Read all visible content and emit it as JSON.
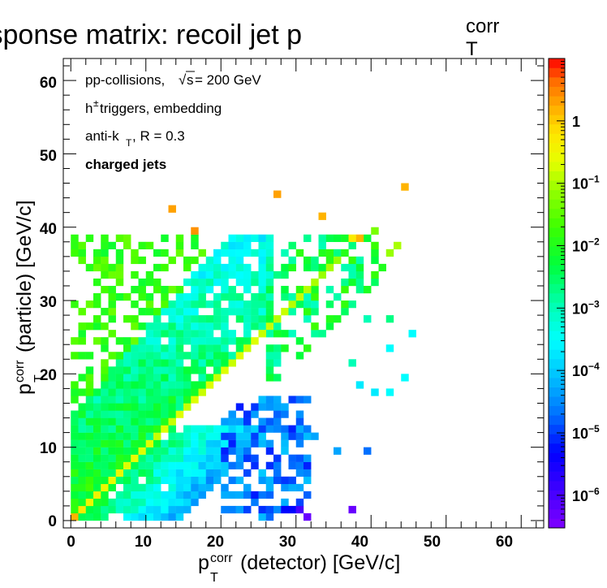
{
  "chart_data": {
    "type": "heatmap",
    "title": {
      "main": "Response matrix: recoil jet p",
      "sup": "corr",
      "sub": "T"
    },
    "xlabel": {
      "p": "p",
      "sup": "corr",
      "sub": "T",
      "rest": "(detector) [GeV/c]"
    },
    "ylabel": {
      "p": "p",
      "sup": "corr",
      "sub": "T",
      "rest": "(particle) [GeV/c]"
    },
    "xlim": [
      -1,
      63
    ],
    "ylim": [
      -1,
      63
    ],
    "x_ticks": [
      "0",
      "10",
      "20",
      "30",
      "40",
      "50",
      "60"
    ],
    "y_ticks": [
      "0",
      "10",
      "20",
      "30",
      "40",
      "50",
      "60"
    ],
    "z_scale": "log",
    "zlim": [
      3e-07,
      10
    ],
    "z_ticks": [
      {
        "base": "10",
        "exp": "−6",
        "value": 1e-06
      },
      {
        "base": "10",
        "exp": "−5",
        "value": 1e-05
      },
      {
        "base": "10",
        "exp": "−4",
        "value": 0.0001
      },
      {
        "base": "10",
        "exp": "−3",
        "value": 0.001
      },
      {
        "base": "10",
        "exp": "−2",
        "value": 0.01
      },
      {
        "base": "10",
        "exp": "−1",
        "value": 0.1
      },
      {
        "base": "1",
        "exp": "",
        "value": 1
      }
    ],
    "annotations": {
      "line1": {
        "pre": "pp-collisions, ",
        "sqrt": "√",
        "s": "s",
        "post": " = 200 GeV"
      },
      "line2": {
        "h": "h",
        "sup": "±",
        "post": " triggers, embedding"
      },
      "line3": {
        "pre": "anti-k",
        "sub": "T",
        "post": ", R = 0.3"
      },
      "line4": "charged jets"
    },
    "bin_width": 1,
    "features": {
      "diagonal_bins": [
        [
          0,
          0,
          1.5
        ],
        [
          1,
          1,
          0.5
        ],
        [
          2,
          2,
          0.3
        ],
        [
          3,
          3,
          0.35
        ],
        [
          4,
          4,
          0.3
        ],
        [
          5,
          5,
          0.25
        ],
        [
          6,
          6,
          0.3
        ],
        [
          7,
          7,
          0.2
        ],
        [
          8,
          8,
          0.25
        ],
        [
          9,
          9,
          0.2
        ],
        [
          10,
          10,
          0.2
        ],
        [
          11,
          11,
          0.15
        ],
        [
          12,
          12,
          0.2
        ],
        [
          13,
          13,
          0.15
        ],
        [
          14,
          14,
          0.2
        ],
        [
          15,
          15,
          0.15
        ],
        [
          16,
          16,
          0.2
        ],
        [
          17,
          17,
          0.15
        ],
        [
          18,
          18,
          0.2
        ],
        [
          19,
          19,
          0.15
        ],
        [
          20,
          20,
          0.2
        ],
        [
          21,
          21,
          0.15
        ],
        [
          22,
          22,
          0.2
        ],
        [
          23,
          23,
          0.15
        ],
        [
          24,
          24,
          0.2
        ],
        [
          25,
          25,
          0.15
        ],
        [
          26,
          26,
          0.15
        ],
        [
          27,
          27,
          0.12
        ],
        [
          28,
          28,
          0.15
        ],
        [
          29,
          29,
          0.12
        ],
        [
          30,
          30,
          0.15
        ],
        [
          31,
          31,
          0.12
        ],
        [
          32,
          32,
          0.1
        ],
        [
          33,
          33,
          0.08
        ],
        [
          34,
          34,
          0.1
        ],
        [
          35,
          35,
          0.08
        ]
      ],
      "isolated_bins": [
        [
          13,
          42,
          2
        ],
        [
          16,
          39,
          2.5
        ],
        [
          27,
          44,
          2
        ],
        [
          33,
          41,
          1.5
        ],
        [
          44,
          45,
          1.5
        ],
        [
          37,
          38,
          0.5
        ],
        [
          38,
          38,
          1.5
        ],
        [
          30,
          1,
          1e-06
        ],
        [
          31,
          0,
          5e-07
        ],
        [
          37,
          1,
          5e-07
        ],
        [
          28,
          1,
          5e-06
        ],
        [
          29,
          1,
          5e-06
        ],
        [
          39,
          9,
          2e-05
        ],
        [
          35,
          9,
          5e-05
        ],
        [
          32,
          11,
          5e-05
        ],
        [
          22,
          11,
          0.0001
        ],
        [
          23,
          11,
          0.0001
        ],
        [
          42,
          17,
          0.0003
        ],
        [
          44,
          19,
          0.0003
        ],
        [
          42,
          23,
          0.0003
        ],
        [
          38,
          18,
          0.0002
        ],
        [
          40,
          17,
          0.0002
        ],
        [
          41,
          34,
          0.01
        ],
        [
          40,
          39,
          0.05
        ],
        [
          42,
          36,
          0.08
        ],
        [
          43,
          37,
          0.1
        ],
        [
          39,
          27,
          0.001
        ],
        [
          42,
          27,
          0.002
        ],
        [
          37,
          21,
          0.001
        ],
        [
          45,
          25,
          0.0003
        ]
      ]
    }
  }
}
